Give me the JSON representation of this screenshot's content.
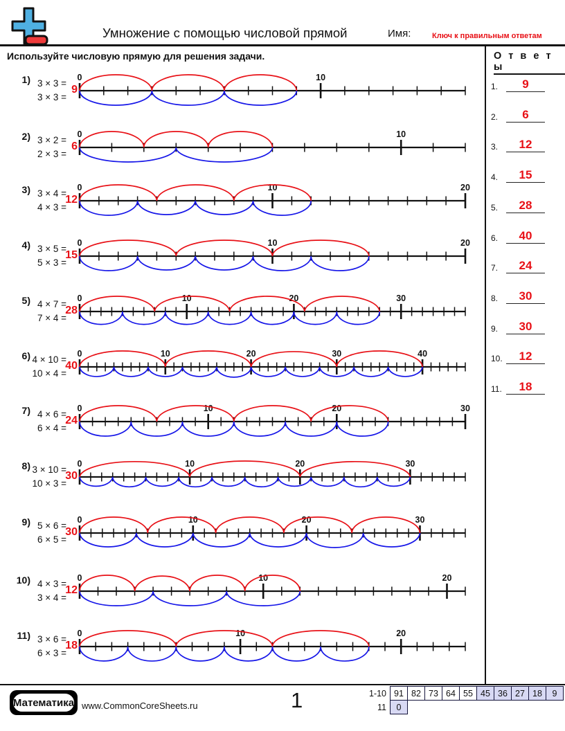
{
  "header": {
    "title": "Умножение с помощью числовой прямой",
    "name_label": "Имя:",
    "key_label": "Ключ к правильным ответам",
    "instruction": "Используйте числовую прямую для решения задачи."
  },
  "answers": {
    "title": "О т в е т ы",
    "items": [
      {
        "n": "1.",
        "v": "9"
      },
      {
        "n": "2.",
        "v": "6"
      },
      {
        "n": "3.",
        "v": "12"
      },
      {
        "n": "4.",
        "v": "15"
      },
      {
        "n": "5.",
        "v": "28"
      },
      {
        "n": "6.",
        "v": "40"
      },
      {
        "n": "7.",
        "v": "24"
      },
      {
        "n": "8.",
        "v": "30"
      },
      {
        "n": "9.",
        "v": "30"
      },
      {
        "n": "10.",
        "v": "12"
      },
      {
        "n": "11.",
        "v": "18"
      }
    ]
  },
  "problems": [
    {
      "n": "1)",
      "eq1": "3 × 3 =",
      "eq2": "3 × 3 =",
      "answer": "9",
      "red": {
        "count": 3,
        "step": 3
      },
      "blue": {
        "count": 3,
        "step": 3
      },
      "max": 16,
      "labels": [
        0,
        10
      ]
    },
    {
      "n": "2)",
      "eq1": "3 × 2 =",
      "eq2": "2 × 3 =",
      "answer": "6",
      "red": {
        "count": 3,
        "step": 2
      },
      "blue": {
        "count": 2,
        "step": 3
      },
      "max": 12,
      "labels": [
        0,
        10
      ]
    },
    {
      "n": "3)",
      "eq1": "3 × 4 =",
      "eq2": "4 × 3 =",
      "answer": "12",
      "red": {
        "count": 3,
        "step": 4
      },
      "blue": {
        "count": 4,
        "step": 3
      },
      "max": 20,
      "labels": [
        0,
        10,
        20
      ]
    },
    {
      "n": "4)",
      "eq1": "3 × 5 =",
      "eq2": "5 × 3 =",
      "answer": "15",
      "red": {
        "count": 3,
        "step": 5
      },
      "blue": {
        "count": 5,
        "step": 3
      },
      "max": 20,
      "labels": [
        0,
        10,
        20
      ]
    },
    {
      "n": "5)",
      "eq1": "4 × 7 =",
      "eq2": "7 × 4 =",
      "answer": "28",
      "red": {
        "count": 4,
        "step": 7
      },
      "blue": {
        "count": 7,
        "step": 4
      },
      "max": 36,
      "labels": [
        0,
        10,
        20,
        30
      ]
    },
    {
      "n": "6)",
      "eq1": "4 × 10 =",
      "eq2": "10 × 4 =",
      "answer": "40",
      "red": {
        "count": 4,
        "step": 10
      },
      "blue": {
        "count": 10,
        "step": 4
      },
      "max": 45,
      "labels": [
        0,
        10,
        20,
        30,
        40
      ]
    },
    {
      "n": "7)",
      "eq1": "4 × 6 =",
      "eq2": "6 × 4 =",
      "answer": "24",
      "red": {
        "count": 4,
        "step": 6
      },
      "blue": {
        "count": 6,
        "step": 4
      },
      "max": 30,
      "labels": [
        0,
        10,
        20,
        30
      ]
    },
    {
      "n": "8)",
      "eq1": "3 × 10 =",
      "eq2": "10 × 3 =",
      "answer": "30",
      "red": {
        "count": 3,
        "step": 10
      },
      "blue": {
        "count": 10,
        "step": 3
      },
      "max": 35,
      "labels": [
        0,
        10,
        20,
        30
      ]
    },
    {
      "n": "9)",
      "eq1": "5 × 6 =",
      "eq2": "6 × 5 =",
      "answer": "30",
      "red": {
        "count": 5,
        "step": 6
      },
      "blue": {
        "count": 6,
        "step": 5
      },
      "max": 34,
      "labels": [
        0,
        10,
        20,
        30
      ]
    },
    {
      "n": "10)",
      "eq1": "4 × 3 =",
      "eq2": "3 × 4 =",
      "answer": "12",
      "red": {
        "count": 4,
        "step": 3
      },
      "blue": {
        "count": 3,
        "step": 4
      },
      "max": 21,
      "labels": [
        0,
        10,
        20
      ]
    },
    {
      "n": "11)",
      "eq1": "3 × 6 =",
      "eq2": "6 × 3 =",
      "answer": "18",
      "red": {
        "count": 3,
        "step": 6
      },
      "blue": {
        "count": 6,
        "step": 3
      },
      "max": 24,
      "labels": [
        0,
        10,
        20
      ]
    }
  ],
  "footer": {
    "brand": "Математика",
    "site": "www.CommonCoreSheets.ru",
    "page": "1",
    "score_rows": [
      {
        "label": "1-10",
        "cells": [
          {
            "v": "91",
            "hl": false
          },
          {
            "v": "82",
            "hl": false
          },
          {
            "v": "73",
            "hl": false
          },
          {
            "v": "64",
            "hl": false
          },
          {
            "v": "55",
            "hl": false
          },
          {
            "v": "45",
            "hl": true
          },
          {
            "v": "36",
            "hl": true
          },
          {
            "v": "27",
            "hl": true
          },
          {
            "v": "18",
            "hl": true
          },
          {
            "v": "9",
            "hl": true
          }
        ]
      },
      {
        "label": "11",
        "cells": [
          {
            "v": "0",
            "hl": true
          }
        ]
      }
    ]
  },
  "colors": {
    "red": "#e81016",
    "blue": "#1616e8",
    "score_highlight": "#d8d9f4",
    "logo_blue": "#4fb0e2",
    "logo_red": "#ef3b3b"
  }
}
